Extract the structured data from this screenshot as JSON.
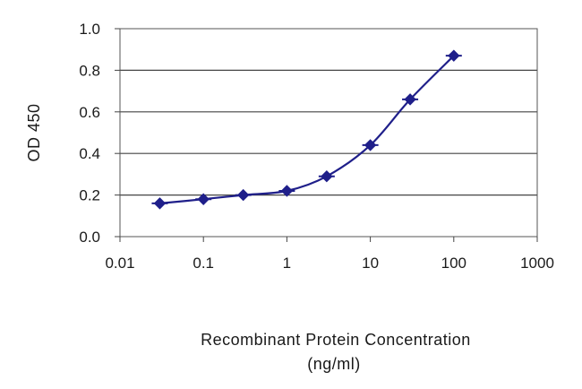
{
  "chart_data": {
    "type": "line",
    "xscale": "log",
    "x": [
      0.03,
      0.1,
      0.3,
      1,
      3,
      10,
      30,
      100
    ],
    "series": [
      {
        "values": [
          0.16,
          0.18,
          0.2,
          0.22,
          0.29,
          0.44,
          0.66,
          0.87
        ],
        "color": "#1f1f8a"
      }
    ],
    "xlim": [
      0.01,
      1000
    ],
    "ylim": [
      0.0,
      1.0
    ],
    "xticks": [
      "0.01",
      "0.1",
      "1",
      "10",
      "100",
      "1000"
    ],
    "yticks": [
      "0.0",
      "0.2",
      "0.4",
      "0.6",
      "0.8",
      "1.0"
    ],
    "xlabel_line1": "Recombinant Protein Concentration",
    "xlabel_line2": "(ng/ml)",
    "ylabel": "OD 450",
    "grid": "horizontal",
    "marker": "diamond"
  }
}
